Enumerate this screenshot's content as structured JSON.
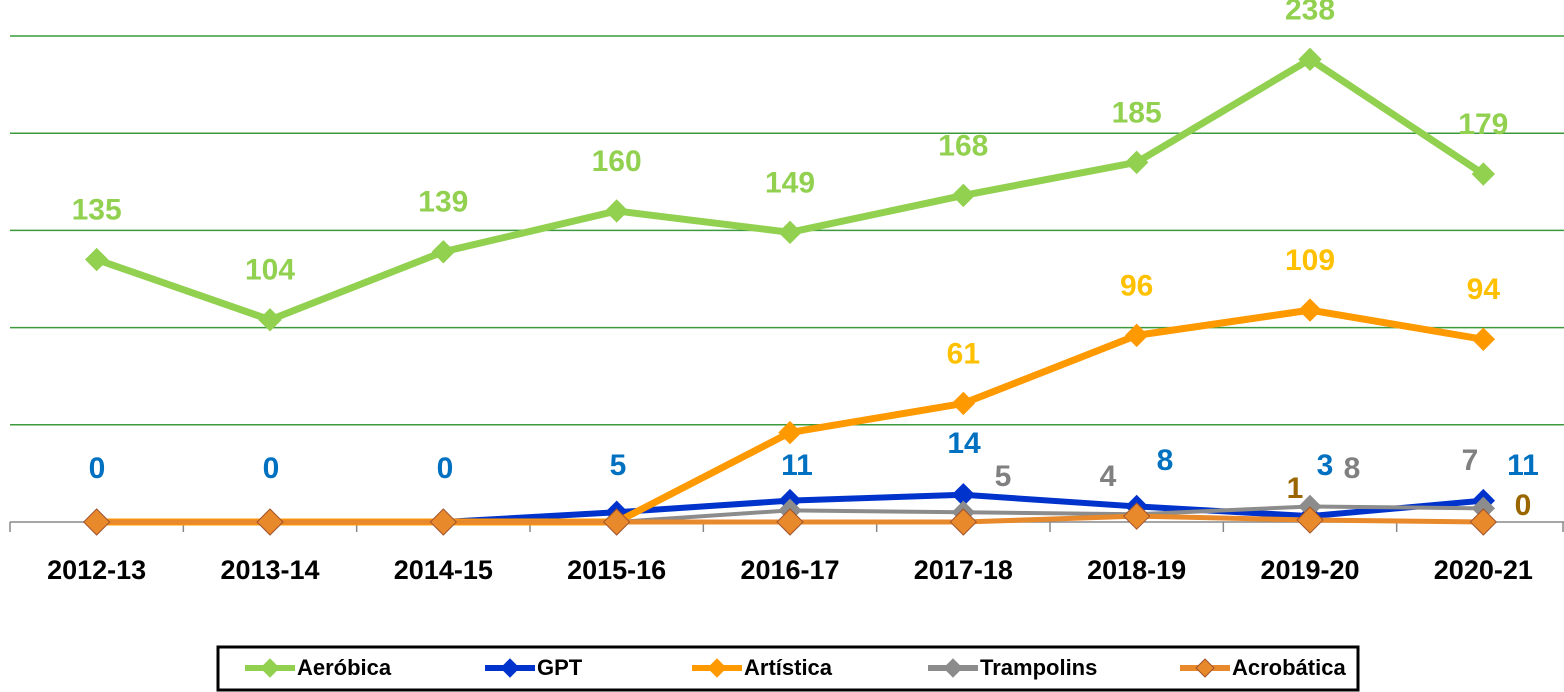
{
  "chart_data": {
    "type": "line",
    "categories": [
      "2012-13",
      "2013-14",
      "2014-15",
      "2015-16",
      "2016-17",
      "2017-18",
      "2018-19",
      "2019-20",
      "2020-21"
    ],
    "series": [
      {
        "name": "Aeróbica",
        "color": "#92d050",
        "label_color": "#92d050",
        "values": [
          135,
          104,
          139,
          160,
          149,
          168,
          185,
          238,
          179
        ],
        "value_labels": [
          "135",
          "104",
          "139",
          "160",
          "149",
          "168",
          "185",
          "238",
          "179"
        ]
      },
      {
        "name": "GPT",
        "color": "#0033cc",
        "label_color": "#0070c0",
        "values": [
          0,
          0,
          0,
          5,
          11,
          14,
          8,
          3,
          11
        ],
        "value_labels": [
          "0",
          "0",
          "0",
          "5",
          "11",
          "14",
          "8",
          "3",
          "11"
        ]
      },
      {
        "name": "Artística",
        "color": "#ff9900",
        "label_color": "#ffc000",
        "values": [
          0,
          0,
          0,
          0,
          46,
          61,
          96,
          109,
          94
        ],
        "value_labels": [
          null,
          null,
          null,
          null,
          null,
          "61",
          "96",
          "109",
          "94"
        ]
      },
      {
        "name": "Trampolins",
        "color": "#8c8c8c",
        "label_color": "#808080",
        "values": [
          0,
          0,
          0,
          0,
          6,
          5,
          4,
          8,
          7
        ],
        "value_labels": [
          null,
          null,
          null,
          null,
          null,
          "5",
          "4",
          "8",
          "7"
        ]
      },
      {
        "name": "Acrobática",
        "color": "#e8892b",
        "label_color": "#996600",
        "values": [
          0,
          0,
          0,
          0,
          0,
          0,
          3,
          1,
          0
        ],
        "value_labels": [
          null,
          null,
          null,
          null,
          null,
          null,
          null,
          "1",
          "0"
        ]
      }
    ],
    "ylim": [
      0,
      250
    ],
    "yticks": [
      0,
      50,
      100,
      150,
      200,
      250
    ],
    "grid": true,
    "legend": "bottom"
  }
}
